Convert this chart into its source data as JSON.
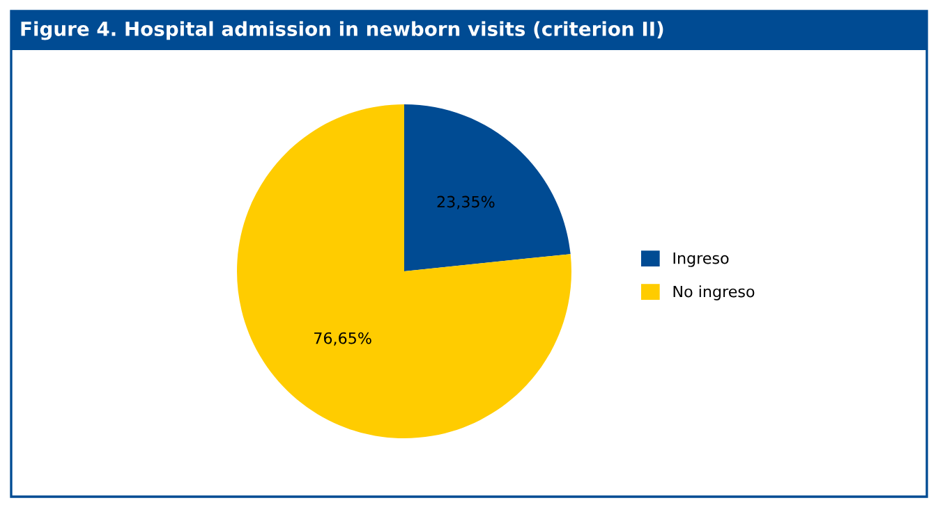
{
  "chart_data": {
    "type": "pie",
    "title": "Figure 4. Hospital admission in newborn visits (criterion II)",
    "categories": [
      "Ingreso",
      "No ingreso"
    ],
    "values": [
      23.35,
      76.65
    ],
    "value_labels": [
      "23,35%",
      "76,65%"
    ],
    "colors": [
      "#004b93",
      "#ffcc00"
    ],
    "legend": "right"
  }
}
